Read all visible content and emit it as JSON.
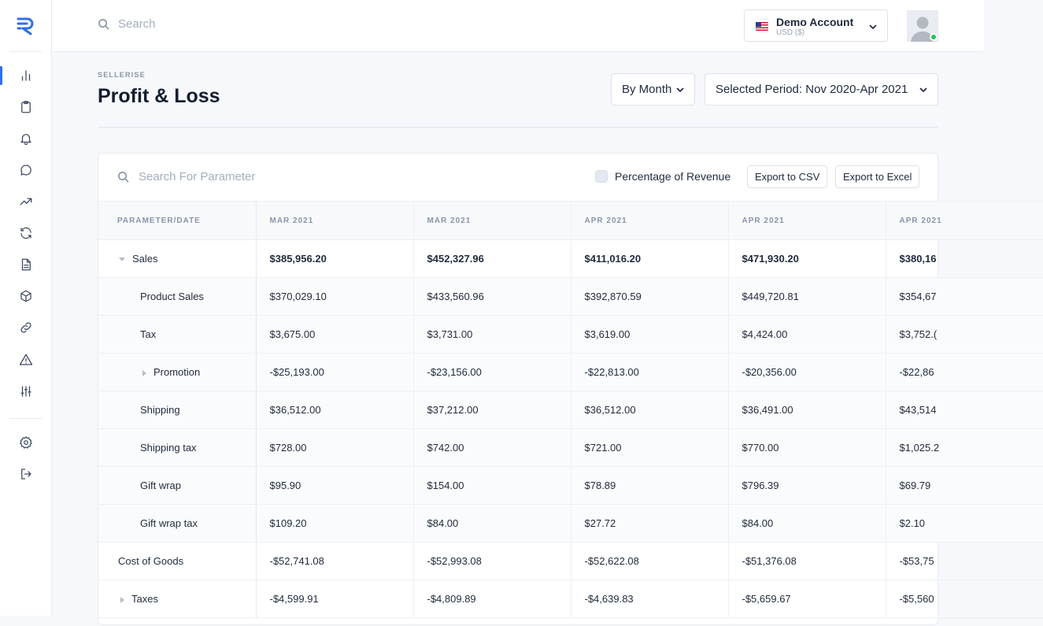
{
  "app": {
    "logo": "sellerise-logo"
  },
  "sidebar": {
    "items": [
      {
        "name": "dashboard",
        "icon": "bar-chart-icon",
        "active": true
      },
      {
        "name": "clipboard",
        "icon": "clipboard-icon"
      },
      {
        "name": "notifications",
        "icon": "bell-icon"
      },
      {
        "name": "messages",
        "icon": "chat-bubble-icon"
      },
      {
        "name": "trends",
        "icon": "trending-up-icon"
      },
      {
        "name": "sync",
        "icon": "refresh-icon"
      },
      {
        "name": "reports",
        "icon": "document-icon"
      },
      {
        "name": "products",
        "icon": "box-icon"
      },
      {
        "name": "links",
        "icon": "link-icon"
      },
      {
        "name": "alerts",
        "icon": "warning-icon"
      },
      {
        "name": "adjustments",
        "icon": "sliders-icon"
      },
      {
        "name": "settings",
        "icon": "gear-icon"
      },
      {
        "name": "logout",
        "icon": "logout-icon"
      }
    ]
  },
  "topbar": {
    "search_placeholder": "Search",
    "account": {
      "name": "Demo Account",
      "currency": "USD ($)"
    }
  },
  "header": {
    "brand": "SELLERISE",
    "title": "Profit & Loss",
    "group_by": "By Month",
    "period": "Selected Period: Nov 2020-Apr 2021"
  },
  "toolbar": {
    "search_placeholder": "Search For Parameter",
    "percentage_label": "Percentage of Revenue",
    "export_csv": "Export to CSV",
    "export_excel": "Export to Excel"
  },
  "table": {
    "columns": [
      "PARAMETER/DATE",
      "MAR 2021",
      "MAR 2021",
      "APR 2021",
      "APR 2021",
      "APR 2021"
    ],
    "rows": [
      {
        "label": "Sales",
        "values": [
          "$385,956.20",
          "$452,327.96",
          "$411,016.20",
          "$471,930.20",
          "$380,16"
        ]
      },
      {
        "label": "Product Sales",
        "values": [
          "$370,029.10",
          "$433,560.96",
          "$392,870.59",
          "$449,720.81",
          "$354,67"
        ]
      },
      {
        "label": "Tax",
        "values": [
          "$3,675.00",
          "$3,731.00",
          "$3,619.00",
          "$4,424.00",
          "$3,752.("
        ]
      },
      {
        "label": "Promotion",
        "values": [
          "-$25,193.00",
          "-$23,156.00",
          "-$22,813.00",
          "-$20,356.00",
          "-$22,86"
        ]
      },
      {
        "label": "Shipping",
        "values": [
          "$36,512.00",
          "$37,212.00",
          "$36,512.00",
          "$36,491.00",
          "$43,514"
        ]
      },
      {
        "label": "Shipping tax",
        "values": [
          "$728.00",
          "$742.00",
          "$721.00",
          "$770.00",
          "$1,025.2"
        ]
      },
      {
        "label": "Gift wrap",
        "values": [
          "$95.90",
          "$154.00",
          "$78.89",
          "$796.39",
          "$69.79"
        ]
      },
      {
        "label": "Gift wrap tax",
        "values": [
          "$109.20",
          "$84.00",
          "$27.72",
          "$84.00",
          "$2.10"
        ]
      },
      {
        "label": "Cost of Goods",
        "values": [
          "-$52,741.08",
          "-$52,993.08",
          "-$52,622.08",
          "-$51,376.08",
          "-$53,75"
        ]
      },
      {
        "label": "Taxes",
        "values": [
          "-$4,599.91",
          "-$4,809.89",
          "-$4,639.83",
          "-$5,659.67",
          "-$5,560"
        ]
      }
    ]
  }
}
